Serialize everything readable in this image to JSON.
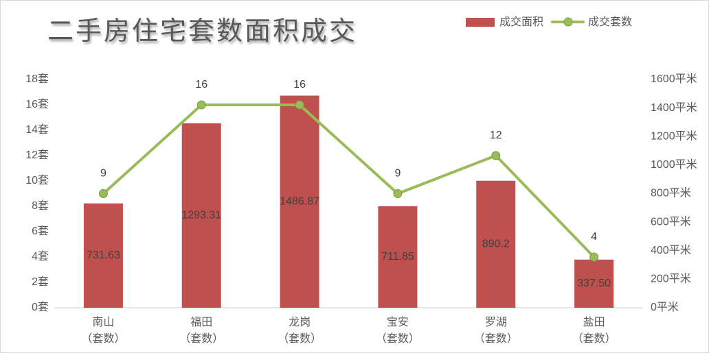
{
  "chart_data": {
    "type": "bar",
    "title": "二手房住宅套数面积成交",
    "categories": [
      "南山\n（套数）",
      "福田\n（套数）",
      "龙岗\n（套数）",
      "宝安\n（套数）",
      "罗湖\n（套数）",
      "盐田\n（套数）"
    ],
    "series": [
      {
        "name": "成交面积",
        "type": "bar",
        "axis": "right",
        "color": "#C0504D",
        "values": [
          731.63,
          1293.31,
          1486.87,
          711.85,
          890.2,
          337.5
        ],
        "labels": [
          "731.63",
          "1293.31",
          "1486.87",
          "711.85",
          "890.2",
          "337.50"
        ]
      },
      {
        "name": "成交套数",
        "type": "line",
        "axis": "left",
        "color": "#9BBB59",
        "marker_color": "#9BBB59",
        "values": [
          9,
          16,
          16,
          9,
          12,
          4
        ],
        "labels": [
          "9",
          "16",
          "16",
          "9",
          "12",
          "4"
        ]
      }
    ],
    "y_left": {
      "range": [
        0,
        18
      ],
      "ticks": [
        0,
        2,
        4,
        6,
        8,
        10,
        12,
        14,
        16,
        18
      ],
      "unit": "套"
    },
    "y_right": {
      "range": [
        0,
        1600
      ],
      "ticks": [
        0,
        200,
        400,
        600,
        800,
        1000,
        1200,
        1400,
        1600
      ],
      "unit": "平米"
    },
    "legend_position": "top-right",
    "grid": false
  }
}
